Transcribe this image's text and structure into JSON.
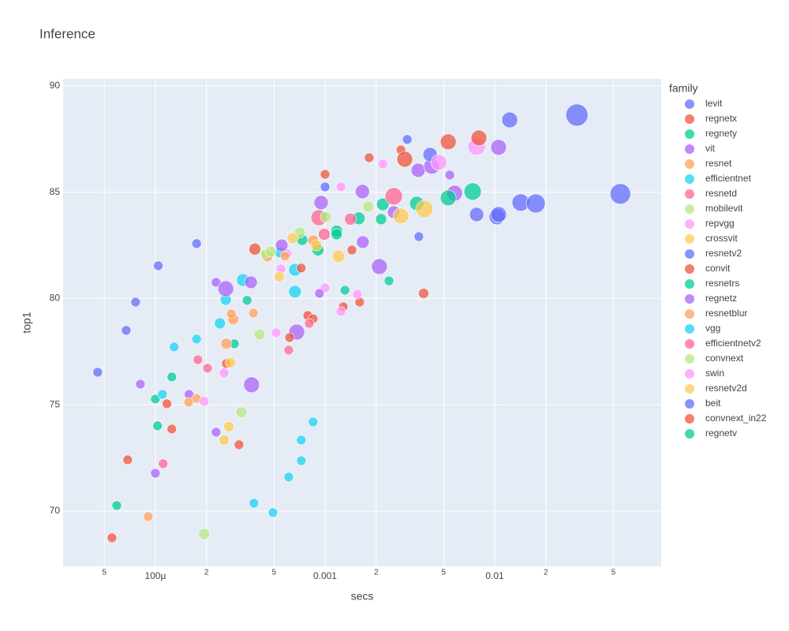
{
  "chart_data": {
    "type": "scatter",
    "title": "Inference",
    "x_label": "secs",
    "y_label": "top1",
    "legend_title": "family",
    "log_x": true,
    "grid": true,
    "legend_position": "right",
    "xlim": [
      2.86e-05,
      0.0957
    ],
    "ylim": [
      67.4,
      90.33
    ],
    "xticks": [
      {
        "value": 5e-05,
        "label": "5"
      },
      {
        "value": 0.0001,
        "label": "100µ"
      },
      {
        "value": 0.0002,
        "label": "2"
      },
      {
        "value": 0.0005,
        "label": "5"
      },
      0.001,
      {
        "value": 0.002,
        "label": "2"
      },
      {
        "value": 0.005,
        "label": "5"
      },
      0.01,
      {
        "value": 0.02,
        "label": "2"
      },
      {
        "value": 0.05,
        "label": "5"
      }
    ],
    "yticks": [
      70,
      75,
      80,
      85,
      90
    ],
    "series": [
      {
        "name": "levit",
        "color": "#636efa",
        "x": [
          4.57e-05,
          6.73e-05,
          7.65e-05,
          0.000104
        ],
        "values": [
          76.53,
          78.5,
          79.83,
          81.54
        ],
        "sizes": [
          12,
          12,
          12,
          12
        ]
      },
      {
        "name": "regnetx",
        "color": "#EF553B",
        "x": [
          5.55e-05,
          6.87e-05,
          0.000117,
          0.000125,
          0.000311,
          0.000262,
          0.00079,
          0.000851,
          0.00128,
          0.0016,
          0.00381
        ],
        "values": [
          68.74,
          72.41,
          75.05,
          73.86,
          73.12,
          76.94,
          79.2,
          79.05,
          79.61,
          79.83,
          80.24
        ],
        "sizes": [
          12,
          12,
          12,
          12,
          12,
          12,
          12,
          12,
          12,
          12,
          13
        ]
      },
      {
        "name": "regnety",
        "color": "#00cc96",
        "x": [
          5.92e-05,
          0.0001,
          0.000125,
          0.000292,
          0.000347,
          0.000733,
          0.000908,
          0.00117,
          0.00158,
          0.00219
        ],
        "values": [
          70.26,
          75.27,
          76.31,
          77.87,
          79.91,
          82.76,
          82.28,
          83.17,
          83.77,
          84.43
        ],
        "sizes": [
          12,
          12,
          12,
          12,
          12,
          14,
          15,
          15,
          16,
          16
        ]
      },
      {
        "name": "vit",
        "color": "#ab63fa",
        "x": [
          0.0001,
          8.16e-05,
          0.000228,
          0.000158,
          0.000369,
          0.000681,
          0.00167,
          0.00209,
          0.00354,
          0.0058,
          0.01054,
          0.00425
        ],
        "values": [
          71.78,
          75.97,
          73.71,
          75.49,
          75.94,
          78.42,
          82.65,
          81.5,
          86.03,
          84.95,
          87.11,
          86.22
        ],
        "sizes": [
          12,
          12,
          12,
          12,
          20,
          20,
          16,
          20,
          18,
          20,
          20,
          20
        ]
      },
      {
        "name": "resnet",
        "color": "#FFA15A",
        "x": [
          9.08e-05,
          0.000157,
          0.000175,
          0.000262,
          0.000288,
          0.000378,
          0.000457,
          0.000851
        ],
        "values": [
          69.74,
          75.12,
          75.3,
          77.87,
          79.02,
          79.31,
          81.99,
          82.73
        ],
        "sizes": [
          12,
          12,
          12,
          14,
          14,
          12,
          14,
          14
        ]
      },
      {
        "name": "efficientnet",
        "color": "#19d3f3",
        "x": [
          0.00011,
          0.000129,
          0.000175,
          0.00024,
          0.00026,
          0.000328,
          0.000665,
          0.000665,
          0.000543
        ],
        "values": [
          75.49,
          77.72,
          78.09,
          78.83,
          79.94,
          80.87,
          81.35,
          80.32,
          82.17
        ],
        "sizes": [
          12,
          12,
          12,
          14,
          14,
          16,
          16,
          16,
          14
        ]
      },
      {
        "name": "resnetd",
        "color": "#FF6692",
        "x": [
          0.000111,
          0.000178,
          0.000203,
          0.000611,
          0.000807,
          0.000989,
          0.00141
        ],
        "values": [
          72.23,
          77.12,
          76.72,
          77.57,
          78.83,
          83.02,
          83.73
        ],
        "sizes": [
          12,
          12,
          12,
          12,
          12,
          15,
          15
        ]
      },
      {
        "name": "mobilevit",
        "color": "#B6E880",
        "x": [
          0.000194,
          0.000321,
          0.000411,
          0.000443
        ],
        "values": [
          68.92,
          74.64,
          78.31,
          82.1
        ],
        "sizes": [
          14,
          14,
          14,
          12
        ]
      },
      {
        "name": "repvgg",
        "color": "#FF97FF",
        "x": [
          0.000194,
          0.000254,
          0.000515,
          0.00055,
          0.000598,
          0.001
        ],
        "values": [
          75.16,
          76.5,
          78.39,
          81.39,
          82.1,
          80.5
        ],
        "sizes": [
          12,
          12,
          12,
          12,
          12,
          12
        ]
      },
      {
        "name": "crossvit",
        "color": "#FECB52",
        "x": [
          0.000277,
          0.000271,
          0.000254,
          0.000537,
          0.000889,
          0.0012
        ],
        "values": [
          76.98,
          73.97,
          73.34,
          81.02,
          82.5,
          81.99
        ],
        "sizes": [
          13,
          13,
          13,
          13,
          14,
          16
        ]
      },
      {
        "name": "resnetv2",
        "color": "#636efa",
        "x": [
          0.000175,
          0.001,
          0.00305,
          0.00357,
          0.00416,
          0.00782,
          0.0103
        ],
        "values": [
          82.58,
          85.25,
          87.48,
          82.91,
          86.77,
          83.95,
          83.84
        ],
        "sizes": [
          12,
          12,
          12,
          12,
          18,
          18,
          20
        ]
      },
      {
        "name": "convit",
        "color": "#EF553B",
        "x": [
          0.000386,
          0.000724,
          0.00144,
          0.001,
          0.00182,
          0.0028,
          0.000618
        ],
        "values": [
          82.32,
          81.43,
          82.28,
          85.84,
          86.62,
          86.99,
          78.16
        ],
        "sizes": [
          15,
          12,
          12,
          12,
          12,
          12,
          12
        ]
      },
      {
        "name": "resnetrs",
        "color": "#00cc96",
        "x": [
          0.00347,
          0.00532,
          0.00741,
          0.00238,
          0.00131
        ],
        "values": [
          84.47,
          84.73,
          85.03,
          80.83,
          80.39
        ],
        "sizes": [
          18,
          20,
          22,
          12,
          12
        ]
      },
      {
        "name": "regnetz",
        "color": "#ab63fa",
        "x": [
          0.000228,
          0.000366,
          0.00026,
          0.000555,
          0.000948,
          0.00166,
          0.00254,
          0.00543,
          0.000927
        ],
        "values": [
          80.76,
          80.76,
          80.46,
          82.5,
          84.51,
          85.03,
          84.06,
          85.81,
          80.24
        ],
        "sizes": [
          12,
          16,
          20,
          16,
          18,
          18,
          16,
          12,
          12
        ]
      },
      {
        "name": "resnetblur",
        "color": "#FFA15A",
        "x": [
          0.00028,
          0.00058
        ],
        "values": [
          79.28,
          81.99
        ],
        "sizes": [
          12,
          12
        ]
      },
      {
        "name": "vgg",
        "color": "#19d3f3",
        "x": [
          0.000381,
          0.000493,
          0.000611,
          0.000724,
          0.000724,
          0.000851
        ],
        "values": [
          70.37,
          69.93,
          71.6,
          72.37,
          73.34,
          74.19
        ],
        "sizes": [
          12,
          12,
          12,
          12,
          12,
          12
        ]
      },
      {
        "name": "efficientnetv2",
        "color": "#FF6692",
        "x": [
          0.000919,
          0.00254
        ],
        "values": [
          83.8,
          84.81
        ],
        "sizes": [
          20,
          22
        ]
      },
      {
        "name": "convnext",
        "color": "#B6E880",
        "x": [
          0.000478,
          0.00071,
          0.00101,
          0.0018
        ],
        "values": [
          82.21,
          83.1,
          83.84,
          84.32
        ],
        "sizes": [
          14,
          14,
          14,
          14
        ]
      },
      {
        "name": "swin",
        "color": "#FF97FF",
        "x": [
          0.00124,
          0.00219,
          0.00468,
          0.00782,
          0.00124,
          0.00155
        ],
        "values": [
          85.25,
          86.33,
          86.4,
          87.14,
          79.39,
          80.2
        ],
        "sizes": [
          12,
          12,
          20,
          22,
          12,
          12
        ]
      },
      {
        "name": "resnetv2d",
        "color": "#FECB52",
        "x": [
          0.000644,
          0.0028,
          0.00385
        ],
        "values": [
          82.84,
          83.88,
          84.21
        ],
        "sizes": [
          14,
          20,
          22
        ]
      },
      {
        "name": "beit",
        "color": "#636efa",
        "x": [
          0.01225,
          0.0305,
          0.055,
          0.01423,
          0.01745,
          0.01054
        ],
        "values": [
          88.4,
          88.63,
          84.92,
          84.51,
          84.47,
          83.95
        ],
        "sizes": [
          20,
          28,
          26,
          22,
          24,
          20
        ]
      },
      {
        "name": "convnext_in22",
        "color": "#EF553B",
        "x": [
          0.00295,
          0.00532,
          0.00807
        ],
        "values": [
          86.55,
          87.37,
          87.55
        ],
        "sizes": [
          20,
          20,
          20
        ]
      },
      {
        "name": "regnetv",
        "color": "#00cc96",
        "x": [
          0.000103,
          0.00214,
          0.00117
        ],
        "values": [
          74.01,
          83.73,
          83.02
        ],
        "sizes": [
          12,
          14,
          14
        ]
      }
    ]
  }
}
